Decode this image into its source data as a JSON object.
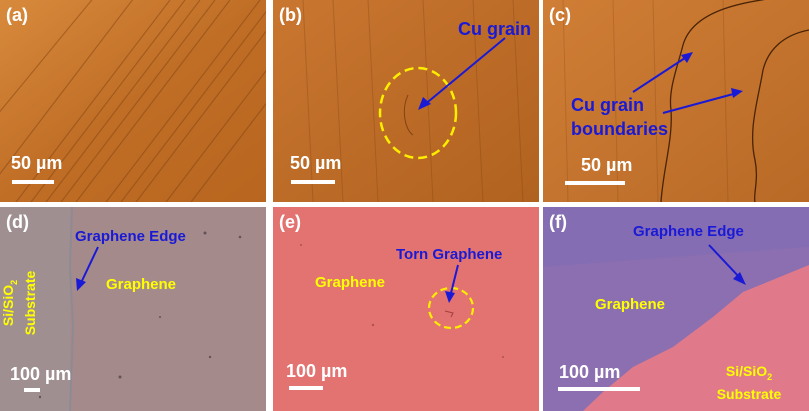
{
  "figure": {
    "panels": [
      {
        "label": "(a)",
        "scale_text": "50 µm"
      },
      {
        "label": "(b)",
        "scale_text": "50 µm",
        "annotation": "Cu grain"
      },
      {
        "label": "(c)",
        "scale_text": "50 µm",
        "annotation_line1": "Cu grain",
        "annotation_line2": "boundaries"
      },
      {
        "label": "(d)",
        "scale_text": "100 µm",
        "edge_text": "Graphene Edge",
        "graphene_text": "Graphene",
        "substrate_line1": "Si/SiO",
        "substrate_sub": "2",
        "substrate_line2": "Substrate"
      },
      {
        "label": "(e)",
        "scale_text": "100 µm",
        "annotation": "Torn Graphene",
        "graphene_text": "Graphene"
      },
      {
        "label": "(f)",
        "scale_text": "100 µm",
        "edge_text": "Graphene Edge",
        "graphene_text": "Graphene",
        "substrate_line1": "Si/SiO",
        "substrate_sub": "2",
        "substrate_line2": "Substrate"
      }
    ],
    "colors": {
      "copper": "#c9772e",
      "copper_dark": "#a85a1c",
      "graphene_sio2": "#a88a8e",
      "graphene_pink": "#e07272",
      "graphene_purple": "#8a6fb0",
      "arrow_blue": "#1a1ad6",
      "label_yellow": "#ffff00"
    }
  }
}
